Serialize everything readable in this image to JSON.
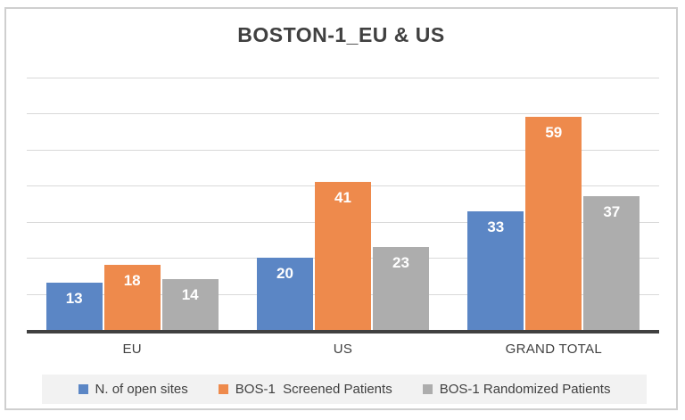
{
  "chart_data": {
    "type": "bar",
    "title": "BOSTON-1_EU & US",
    "categories": [
      "EU",
      "US",
      "GRAND TOTAL"
    ],
    "series": [
      {
        "name": "N. of open sites",
        "color": "#5b86c5",
        "values": [
          13,
          20,
          33
        ]
      },
      {
        "name": "BOS-1  Screened Patients",
        "color": "#ee8a4c",
        "values": [
          18,
          41,
          59
        ]
      },
      {
        "name": "BOS-1 Randomized Patients",
        "color": "#adadad",
        "values": [
          14,
          23,
          37
        ]
      }
    ],
    "xlabel": "",
    "ylabel": "",
    "ylim": [
      0,
      70
    ],
    "gridline_step": 10,
    "grid": true,
    "legend_position": "bottom",
    "data_labels": "inside-end",
    "data_label_color": "#ffffff",
    "text_color": "#404040",
    "gridline_color": "#d9d9d9",
    "axis_line_color": "#404040",
    "legend_background": "#f2f2f2",
    "frame_border_color": "#cfcfcf"
  }
}
